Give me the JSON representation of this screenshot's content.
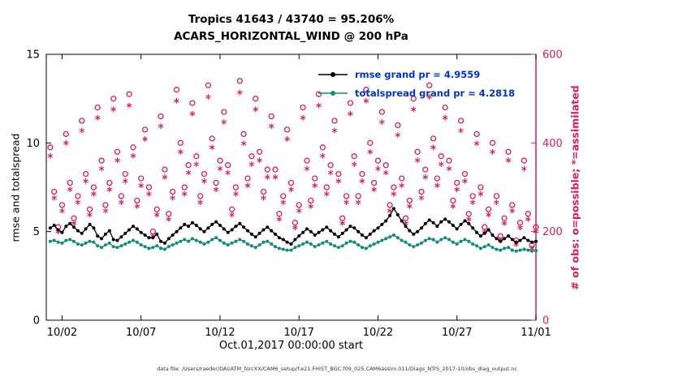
{
  "figure": {
    "title_line1": "Tropics 41643 / 43740 = 95.206%",
    "title_line2": "ACARS_HORIZONTAL_WIND @ 200 hPa",
    "left_ylabel": "rmse and totalspread",
    "right_ylabel": "# of obs: o=possible; *=assimilated",
    "xlabel": "Oct.01,2017 00:00:00 start",
    "caption": "data file: /Users/raeder/DAI/ATM_forcXX/CAM6_setup/f.e21.FHIST_BGC.f09_025.CAM6assim.011/Diags_NTrS_2017-10/obs_diag_output.nc",
    "colors": {
      "rmse": "#000000",
      "totalspread": "#128a7e",
      "obs": "#d81b60",
      "legend_text": "#0033cc"
    }
  },
  "legend": {
    "rmse_label": "rmse grand pr = 4.9559",
    "totalspread_label": "totalspread grand pr = 4.2818"
  },
  "chart_data": {
    "type": "line",
    "title": "Tropics 41643 / 43740 = 95.206% | ACARS_HORIZONTAL_WIND @ 200 hPa",
    "xlabel": "Oct.01,2017 00:00:00 start",
    "left_ylabel": "rmse and totalspread",
    "right_ylabel": "# of obs: o=possible; *=assimilated",
    "x_start": 0.25,
    "x_step": 0.25,
    "x_range": [
      0,
      31
    ],
    "left_ylim": [
      0,
      15
    ],
    "left_yticks": [
      0,
      5,
      10,
      15
    ],
    "right_ylim": [
      0,
      600
    ],
    "right_yticks": [
      0,
      200,
      400,
      600
    ],
    "xtick_days": [
      1,
      6,
      11,
      16,
      21,
      26,
      31
    ],
    "xtick_labels": [
      "10/02",
      "10/07",
      "10/12",
      "10/17",
      "10/22",
      "10/27",
      "11/01"
    ],
    "series": [
      {
        "name": "rmse",
        "grand_pr": 4.9559,
        "values": [
          5.2,
          5.35,
          5.1,
          4.95,
          5.3,
          5.45,
          5.25,
          5.05,
          4.9,
          5.15,
          5.4,
          5.2,
          4.75,
          4.6,
          4.85,
          5.05,
          4.55,
          4.5,
          4.7,
          4.9,
          5.1,
          5.3,
          5.15,
          4.95,
          4.8,
          4.65,
          4.65,
          4.85,
          4.45,
          4.35,
          4.6,
          4.8,
          5.0,
          5.2,
          5.4,
          5.3,
          5.5,
          5.35,
          5.15,
          5.0,
          5.2,
          5.4,
          5.55,
          5.35,
          5.15,
          4.95,
          5.1,
          5.3,
          5.45,
          5.25,
          5.05,
          4.85,
          4.7,
          4.9,
          5.1,
          5.25,
          5.05,
          4.85,
          4.65,
          4.55,
          4.4,
          4.3,
          4.55,
          4.75,
          4.95,
          5.15,
          5.0,
          4.8,
          4.95,
          5.1,
          5.25,
          5.05,
          4.85,
          4.7,
          4.9,
          5.1,
          5.3,
          5.2,
          5.0,
          4.8,
          4.65,
          4.85,
          5.05,
          5.2,
          5.4,
          5.6,
          5.9,
          6.3,
          5.95,
          5.6,
          5.3,
          5.05,
          4.85,
          5.0,
          5.2,
          5.45,
          5.65,
          5.5,
          5.3,
          5.55,
          5.7,
          5.55,
          5.35,
          5.15,
          5.4,
          5.6,
          5.45,
          5.2,
          4.95,
          4.75,
          4.9,
          5.1,
          4.8,
          4.6,
          4.45,
          4.6,
          4.75,
          4.55,
          4.4,
          4.5,
          4.65,
          4.5,
          4.4,
          4.45
        ]
      },
      {
        "name": "totalspread",
        "grand_pr": 4.2818,
        "values": [
          4.45,
          4.5,
          4.4,
          4.35,
          4.5,
          4.55,
          4.45,
          4.3,
          4.25,
          4.35,
          4.45,
          4.4,
          4.2,
          4.1,
          4.25,
          4.35,
          4.15,
          4.1,
          4.2,
          4.3,
          4.4,
          4.5,
          4.4,
          4.25,
          4.15,
          4.05,
          4.1,
          4.2,
          4.05,
          4.0,
          4.15,
          4.25,
          4.35,
          4.45,
          4.55,
          4.45,
          4.6,
          4.5,
          4.4,
          4.3,
          4.4,
          4.55,
          4.65,
          4.5,
          4.35,
          4.25,
          4.35,
          4.45,
          4.55,
          4.45,
          4.3,
          4.2,
          4.1,
          4.25,
          4.4,
          4.45,
          4.3,
          4.15,
          4.05,
          4.0,
          3.95,
          3.95,
          4.1,
          4.2,
          4.3,
          4.4,
          4.3,
          4.15,
          4.25,
          4.35,
          4.45,
          4.3,
          4.2,
          4.1,
          4.2,
          4.35,
          4.45,
          4.4,
          4.25,
          4.1,
          4.05,
          4.2,
          4.3,
          4.4,
          4.5,
          4.6,
          4.7,
          4.8,
          4.65,
          4.5,
          4.4,
          4.25,
          4.15,
          4.25,
          4.35,
          4.5,
          4.6,
          4.55,
          4.4,
          4.55,
          4.65,
          4.55,
          4.4,
          4.3,
          4.45,
          4.55,
          4.45,
          4.3,
          4.2,
          4.05,
          4.15,
          4.25,
          4.1,
          4.0,
          3.95,
          4.05,
          4.1,
          3.95,
          3.9,
          3.95,
          4.0,
          3.95,
          3.9,
          3.92
        ]
      }
    ],
    "obs_counts": {
      "possible_marker": "o",
      "assimilated_marker": "*",
      "possible": [
        390,
        290,
        210,
        260,
        420,
        310,
        230,
        280,
        450,
        330,
        250,
        300,
        480,
        360,
        260,
        310,
        500,
        380,
        280,
        330,
        510,
        390,
        270,
        320,
        430,
        300,
        200,
        250,
        460,
        340,
        240,
        290,
        520,
        400,
        300,
        350,
        490,
        370,
        280,
        330,
        530,
        410,
        310,
        360,
        470,
        350,
        250,
        300,
        540,
        420,
        320,
        370,
        500,
        380,
        290,
        340,
        460,
        340,
        240,
        280,
        430,
        310,
        220,
        260,
        480,
        360,
        270,
        320,
        510,
        390,
        300,
        350,
        450,
        330,
        230,
        280,
        490,
        370,
        280,
        330,
        520,
        400,
        310,
        360,
        470,
        350,
        260,
        300,
        440,
        320,
        230,
        270,
        500,
        380,
        290,
        340,
        530,
        410,
        320,
        370,
        480,
        360,
        270,
        310,
        450,
        330,
        240,
        280,
        420,
        300,
        210,
        250,
        400,
        280,
        190,
        230,
        380,
        260,
        180,
        220,
        360,
        240,
        170,
        210
      ],
      "assimilated": [
        371,
        276,
        200,
        247,
        400,
        295,
        219,
        266,
        428,
        314,
        238,
        285,
        457,
        342,
        247,
        295,
        476,
        361,
        266,
        314,
        485,
        371,
        257,
        304,
        409,
        285,
        190,
        238,
        438,
        323,
        228,
        276,
        495,
        380,
        285,
        333,
        466,
        352,
        266,
        314,
        504,
        390,
        295,
        342,
        447,
        333,
        238,
        285,
        514,
        399,
        304,
        352,
        476,
        361,
        276,
        323,
        438,
        323,
        228,
        266,
        409,
        295,
        209,
        247,
        457,
        342,
        257,
        304,
        485,
        371,
        285,
        333,
        428,
        314,
        219,
        266,
        466,
        352,
        266,
        314,
        495,
        380,
        295,
        342,
        447,
        333,
        247,
        285,
        418,
        304,
        219,
        257,
        476,
        361,
        276,
        323,
        504,
        390,
        304,
        352,
        457,
        342,
        257,
        295,
        428,
        314,
        228,
        266,
        399,
        285,
        200,
        238,
        380,
        266,
        181,
        219,
        361,
        247,
        171,
        209,
        342,
        228,
        162,
        200
      ]
    }
  }
}
